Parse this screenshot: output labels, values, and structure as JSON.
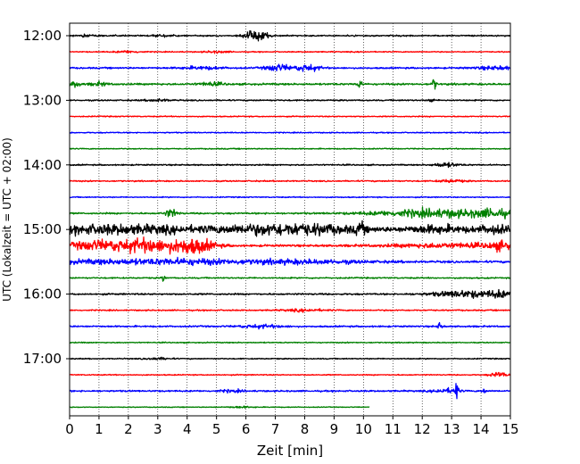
{
  "chart_data": {
    "type": "line",
    "title": "",
    "xlabel": "Zeit  [min]",
    "ylabel": "UTC (Lokalzeit = UTC + 02:00)",
    "xlim": [
      0,
      15
    ],
    "x_ticks": [
      0,
      1,
      2,
      3,
      4,
      5,
      6,
      7,
      8,
      9,
      10,
      11,
      12,
      13,
      14,
      15
    ],
    "x_tick_labels": [
      "0",
      "1",
      "2",
      "3",
      "4",
      "5",
      "6",
      "7",
      "8",
      "9",
      "10",
      "11",
      "12",
      "13",
      "14",
      "15"
    ],
    "y_tick_labels": [
      "12:00",
      "13:00",
      "14:00",
      "15:00",
      "16:00",
      "17:00"
    ],
    "y_tick_rows": [
      0,
      4,
      8,
      12,
      16,
      20
    ],
    "grid": "vertical dotted lines at each minute",
    "legend": "none",
    "trace_color_cycle": [
      "#000000",
      "#ff0000",
      "#0000ff",
      "#008000"
    ],
    "traces": [
      {
        "start": "12:00",
        "end_min": 15,
        "noise": 0.5,
        "bursts": [
          [
            6.35,
            0.25,
            4.5
          ],
          [
            0.5,
            0.2,
            0.8
          ],
          [
            3.2,
            0.2,
            0.8
          ]
        ]
      },
      {
        "start": "12:15",
        "end_min": 15,
        "noise": 0.4,
        "bursts": [
          [
            2.0,
            0.3,
            0.8
          ],
          [
            5.0,
            0.3,
            0.7
          ]
        ]
      },
      {
        "start": "12:30",
        "end_min": 15,
        "noise": 0.6,
        "bursts": [
          [
            7.1,
            0.3,
            2.5
          ],
          [
            8.1,
            0.3,
            2.5
          ],
          [
            4.5,
            0.5,
            1.0
          ],
          [
            14.5,
            0.5,
            1.2
          ]
        ]
      },
      {
        "start": "12:45",
        "end_min": 15,
        "noise": 0.7,
        "bursts": [
          [
            9.85,
            0.05,
            5.0
          ],
          [
            12.4,
            0.05,
            4.5
          ],
          [
            0.2,
            0.1,
            2.5
          ],
          [
            1.0,
            0.2,
            1.3
          ],
          [
            4.8,
            0.3,
            1.2
          ]
        ]
      },
      {
        "start": "13:00",
        "end_min": 15,
        "noise": 0.5,
        "bursts": [
          [
            12.3,
            0.05,
            2.5
          ],
          [
            3.0,
            0.3,
            0.8
          ]
        ]
      },
      {
        "start": "13:15",
        "end_min": 15,
        "noise": 0.4,
        "bursts": []
      },
      {
        "start": "13:30",
        "end_min": 15,
        "noise": 0.4,
        "bursts": []
      },
      {
        "start": "13:45",
        "end_min": 15,
        "noise": 0.4,
        "bursts": []
      },
      {
        "start": "14:00",
        "end_min": 15,
        "noise": 0.5,
        "bursts": [
          [
            12.8,
            0.3,
            1.5
          ]
        ]
      },
      {
        "start": "14:15",
        "end_min": 15,
        "noise": 0.5,
        "bursts": [
          [
            13.0,
            0.3,
            1.0
          ]
        ]
      },
      {
        "start": "14:30",
        "end_min": 15,
        "noise": 0.4,
        "bursts": []
      },
      {
        "start": "14:45",
        "end_min": 15,
        "noise": 0.6,
        "bursts": [
          [
            3.45,
            0.15,
            3.0
          ],
          [
            12.5,
            1.5,
            3.0
          ],
          [
            14.5,
            0.5,
            2.0
          ]
        ]
      },
      {
        "start": "15:00",
        "end_min": 15,
        "noise": 0.8,
        "bursts": [
          [
            1.5,
            2.0,
            3.5
          ],
          [
            7.5,
            1.8,
            4.5
          ],
          [
            12.5,
            0.8,
            3.0
          ],
          [
            9.9,
            0.1,
            3.5
          ],
          [
            14.5,
            0.5,
            3.0
          ]
        ]
      },
      {
        "start": "15:15",
        "end_min": 15,
        "noise": 0.8,
        "bursts": [
          [
            2.5,
            0.8,
            5.0
          ],
          [
            4.2,
            0.5,
            5.5
          ],
          [
            0.8,
            0.6,
            3.0
          ],
          [
            13.0,
            1.5,
            1.5
          ],
          [
            14.7,
            0.3,
            2.5
          ]
        ]
      },
      {
        "start": "15:30",
        "end_min": 15,
        "noise": 0.8,
        "bursts": [
          [
            1.5,
            1.5,
            1.5
          ],
          [
            4.0,
            1.0,
            1.5
          ],
          [
            7.5,
            1.8,
            1.5
          ]
        ]
      },
      {
        "start": "15:45",
        "end_min": 15,
        "noise": 0.5,
        "bursts": [
          [
            3.2,
            0.05,
            2.5
          ]
        ]
      },
      {
        "start": "16:00",
        "end_min": 15,
        "noise": 0.6,
        "bursts": [
          [
            13.5,
            0.8,
            2.5
          ],
          [
            14.7,
            0.3,
            2.0
          ]
        ]
      },
      {
        "start": "16:15",
        "end_min": 15,
        "noise": 0.5,
        "bursts": [
          [
            8.0,
            0.5,
            0.8
          ]
        ]
      },
      {
        "start": "16:30",
        "end_min": 15,
        "noise": 0.6,
        "bursts": [
          [
            6.5,
            0.5,
            1.2
          ],
          [
            12.6,
            0.05,
            3.0
          ]
        ]
      },
      {
        "start": "16:45",
        "end_min": 15,
        "noise": 0.4,
        "bursts": []
      },
      {
        "start": "17:00",
        "end_min": 15,
        "noise": 0.4,
        "bursts": [
          [
            3.0,
            0.3,
            0.8
          ]
        ]
      },
      {
        "start": "17:15",
        "end_min": 15,
        "noise": 0.4,
        "bursts": [
          [
            14.6,
            0.2,
            2.0
          ]
        ]
      },
      {
        "start": "17:30",
        "end_min": 15,
        "noise": 0.6,
        "bursts": [
          [
            13.15,
            0.05,
            7.0
          ],
          [
            12.8,
            0.3,
            1.5
          ],
          [
            14.1,
            0.05,
            2.0
          ],
          [
            5.5,
            0.3,
            0.8
          ]
        ]
      },
      {
        "start": "17:45",
        "end_min": 10.2,
        "noise": 0.3,
        "bursts": [
          [
            5.8,
            0.3,
            0.6
          ]
        ]
      }
    ]
  }
}
